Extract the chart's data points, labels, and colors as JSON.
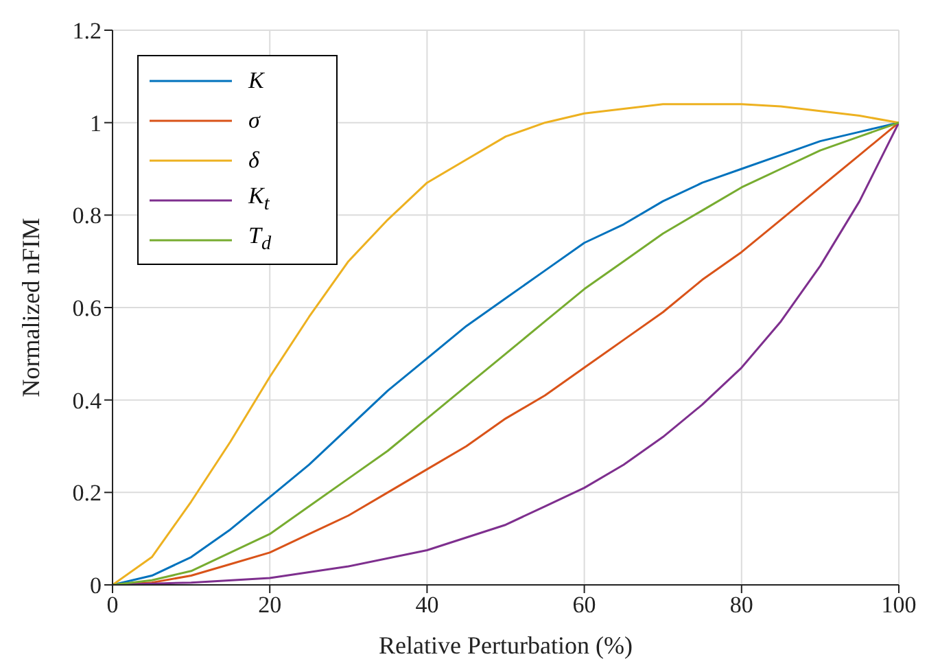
{
  "chart_data": {
    "type": "line",
    "xlabel": "Relative Perturbation (%)",
    "ylabel": "Normalized nFIM",
    "xlim": [
      0,
      100
    ],
    "xticks": [
      0,
      20,
      40,
      60,
      80,
      100
    ],
    "ylim": [
      0,
      1.2
    ],
    "yticks": [
      0,
      0.2,
      0.4,
      0.6,
      0.8,
      1,
      1.2
    ],
    "grid": true,
    "legend": "top left",
    "marker": "none",
    "line_style": "solid",
    "series": [
      {
        "name": "K",
        "color": "#0072bd",
        "x": [
          0,
          5,
          10,
          15,
          20,
          25,
          30,
          35,
          40,
          45,
          50,
          55,
          60,
          65,
          70,
          75,
          80,
          85,
          90,
          95,
          100
        ],
        "values": [
          0,
          0.02,
          0.06,
          0.12,
          0.19,
          0.26,
          0.34,
          0.42,
          0.49,
          0.56,
          0.62,
          0.68,
          0.74,
          0.78,
          0.83,
          0.87,
          0.9,
          0.93,
          0.96,
          0.98,
          1
        ]
      },
      {
        "name": "σ",
        "color": "#d95319",
        "x": [
          0,
          5,
          10,
          15,
          20,
          25,
          30,
          35,
          40,
          45,
          50,
          55,
          60,
          65,
          70,
          75,
          80,
          85,
          90,
          95,
          100
        ],
        "values": [
          0,
          0.005,
          0.02,
          0.045,
          0.07,
          0.11,
          0.15,
          0.2,
          0.25,
          0.3,
          0.36,
          0.41,
          0.47,
          0.53,
          0.59,
          0.66,
          0.72,
          0.79,
          0.86,
          0.93,
          1
        ]
      },
      {
        "name": "δ",
        "color": "#edb120",
        "x": [
          0,
          5,
          10,
          15,
          20,
          25,
          30,
          35,
          40,
          45,
          50,
          55,
          60,
          65,
          70,
          75,
          80,
          85,
          90,
          95,
          100
        ],
        "values": [
          0,
          0.06,
          0.18,
          0.31,
          0.45,
          0.58,
          0.7,
          0.79,
          0.87,
          0.92,
          0.97,
          1,
          1.02,
          1.03,
          1.04,
          1.04,
          1.04,
          1.035,
          1.025,
          1.015,
          1
        ]
      },
      {
        "name": "K$_{t}$",
        "color": "#7e2f8e",
        "x": [
          0,
          10,
          20,
          30,
          40,
          50,
          55,
          60,
          65,
          70,
          75,
          80,
          85,
          90,
          95,
          100
        ],
        "values": [
          0,
          0.005,
          0.015,
          0.04,
          0.075,
          0.13,
          0.17,
          0.21,
          0.26,
          0.32,
          0.39,
          0.47,
          0.57,
          0.69,
          0.83,
          1
        ]
      },
      {
        "name": "T$_{d}$",
        "color": "#77ac30",
        "x": [
          0,
          5,
          10,
          15,
          20,
          25,
          30,
          35,
          40,
          45,
          50,
          55,
          60,
          65,
          70,
          75,
          80,
          85,
          90,
          95,
          100
        ],
        "values": [
          0,
          0.01,
          0.03,
          0.07,
          0.11,
          0.17,
          0.23,
          0.29,
          0.36,
          0.43,
          0.5,
          0.57,
          0.64,
          0.7,
          0.76,
          0.81,
          0.86,
          0.9,
          0.94,
          0.97,
          1
        ]
      }
    ]
  }
}
